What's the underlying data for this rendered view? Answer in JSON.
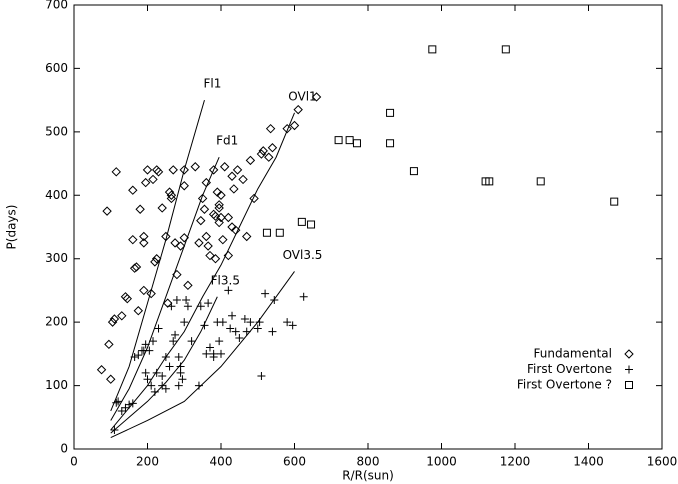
{
  "chart_data": {
    "type": "scatter",
    "xlabel": "R/R(sun)",
    "ylabel": "P(days)",
    "xlim": [
      0,
      1600
    ],
    "ylim": [
      0,
      700
    ],
    "xticks": [
      0,
      200,
      400,
      600,
      800,
      1000,
      1200,
      1400,
      1600
    ],
    "yticks": [
      0,
      100,
      200,
      300,
      400,
      500,
      600,
      700
    ],
    "legend": "lower right",
    "series": [
      {
        "name": "Fundamental",
        "marker": "diamond",
        "color": "#000000",
        "x": [
          75,
          100,
          95,
          90,
          105,
          110,
          115,
          130,
          140,
          145,
          160,
          160,
          165,
          170,
          175,
          180,
          190,
          190,
          190,
          195,
          200,
          210,
          215,
          220,
          225,
          225,
          230,
          240,
          250,
          255,
          260,
          265,
          265,
          270,
          275,
          280,
          290,
          300,
          300,
          300,
          310,
          330,
          340,
          345,
          350,
          355,
          360,
          360,
          365,
          370,
          380,
          380,
          385,
          385,
          390,
          395,
          395,
          395,
          400,
          400,
          405,
          410,
          420,
          420,
          430,
          430,
          435,
          440,
          445,
          460,
          470,
          480,
          490,
          510,
          515,
          530,
          535,
          540,
          580,
          600,
          610,
          660
        ],
        "y": [
          125,
          110,
          165,
          375,
          200,
          205,
          437,
          210,
          240,
          237,
          330,
          408,
          285,
          287,
          218,
          378,
          335,
          325,
          250,
          420,
          440,
          245,
          425,
          295,
          300,
          440,
          437,
          380,
          335,
          230,
          405,
          395,
          400,
          440,
          325,
          275,
          320,
          440,
          415,
          333,
          258,
          445,
          325,
          360,
          395,
          378,
          420,
          335,
          320,
          305,
          440,
          370,
          367,
          300,
          405,
          380,
          385,
          357,
          400,
          365,
          330,
          445,
          365,
          305,
          430,
          350,
          410,
          345,
          440,
          425,
          335,
          455,
          395,
          465,
          470,
          460,
          505,
          475,
          505,
          510,
          535,
          555
        ]
      },
      {
        "name": "First Overtone",
        "marker": "plus",
        "color": "#000000",
        "x": [
          110,
          115,
          120,
          130,
          140,
          150,
          160,
          165,
          175,
          185,
          190,
          195,
          195,
          200,
          205,
          210,
          215,
          220,
          225,
          230,
          240,
          240,
          250,
          250,
          260,
          265,
          270,
          275,
          280,
          285,
          285,
          290,
          290,
          295,
          300,
          305,
          310,
          320,
          340,
          345,
          355,
          360,
          365,
          370,
          380,
          380,
          390,
          395,
          400,
          405,
          420,
          425,
          430,
          440,
          450,
          465,
          470,
          480,
          500,
          505,
          510,
          520,
          540,
          545,
          580,
          595,
          625
        ],
        "y": [
          30,
          73,
          75,
          60,
          65,
          70,
          72,
          145,
          148,
          155,
          155,
          165,
          120,
          110,
          155,
          100,
          170,
          90,
          120,
          190,
          100,
          115,
          95,
          145,
          130,
          225,
          170,
          180,
          235,
          100,
          145,
          130,
          120,
          110,
          200,
          235,
          225,
          170,
          100,
          225,
          195,
          150,
          230,
          160,
          145,
          150,
          200,
          170,
          150,
          200,
          250,
          190,
          210,
          185,
          175,
          205,
          185,
          200,
          190,
          200,
          115,
          245,
          185,
          235,
          200,
          195,
          240
        ]
      },
      {
        "name": "First Overtone ?",
        "marker": "square",
        "color": "#000000",
        "x": [
          975,
          1175,
          860,
          860,
          720,
          750,
          770,
          925,
          1120,
          1130,
          1270,
          1470,
          620,
          645,
          525,
          560
        ],
        "y": [
          630,
          630,
          530,
          482,
          487,
          487,
          482,
          438,
          422,
          422,
          422,
          390,
          358,
          354,
          341,
          341
        ]
      }
    ],
    "model_lines": [
      {
        "name": "Fl1",
        "x": [
          100,
          150,
          200,
          250,
          300,
          355
        ],
        "y": [
          60,
          130,
          230,
          330,
          440,
          550
        ]
      },
      {
        "name": "Fd1",
        "x": [
          100,
          150,
          200,
          250,
          300,
          350,
          395
        ],
        "y": [
          45,
          95,
          160,
          240,
          320,
          400,
          460
        ]
      },
      {
        "name": "OVl1",
        "x": [
          100,
          150,
          200,
          250,
          300,
          350,
          400,
          450,
          500,
          550,
          600
        ],
        "y": [
          30,
          65,
          100,
          145,
          185,
          240,
          290,
          350,
          410,
          460,
          530
        ]
      },
      {
        "name": "Fl3.5",
        "x": [
          100,
          150,
          200,
          250,
          300,
          345,
          390
        ],
        "y": [
          25,
          50,
          75,
          105,
          140,
          185,
          240
        ]
      },
      {
        "name": "OVl3.5",
        "x": [
          100,
          200,
          300,
          400,
          500,
          600
        ],
        "y": [
          18,
          45,
          75,
          130,
          200,
          280
        ]
      }
    ]
  }
}
